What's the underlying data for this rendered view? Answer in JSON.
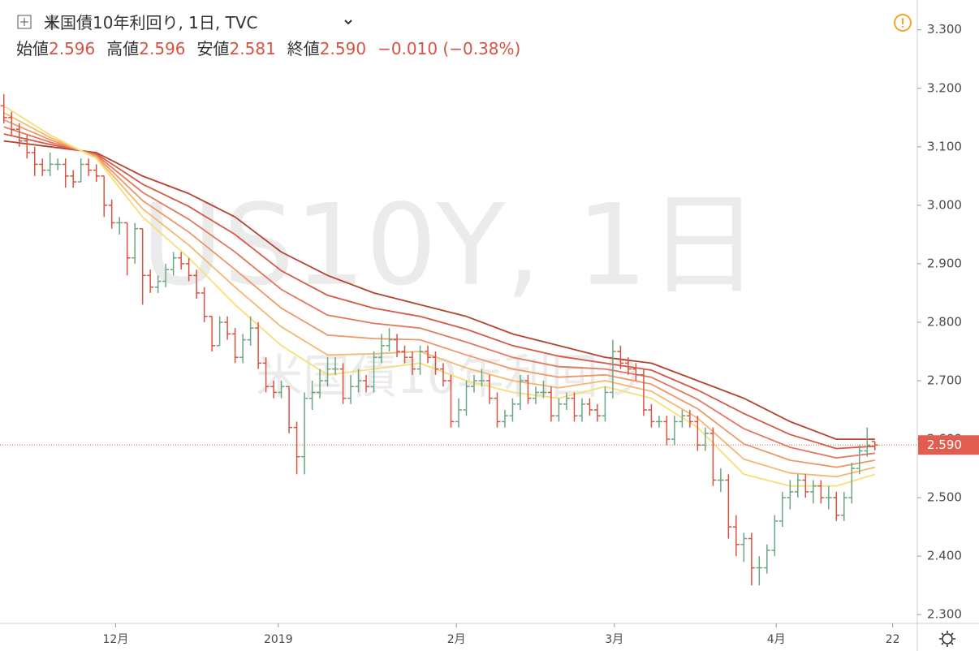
{
  "chart_data": {
    "type": "ohlc",
    "title": "米国債10年利回り, 1日, TVC",
    "legend": {
      "labels": [
        "始値",
        "高値",
        "安値",
        "終値"
      ],
      "values": [
        "2.596",
        "2.596",
        "2.581",
        "2.590"
      ],
      "change": "−0.010 (−0.38%)"
    },
    "watermark": {
      "symbol": "US10Y, 1日",
      "name": "米国債10年利回り"
    },
    "up_color": "#6ba583",
    "down_color": "#d75442",
    "open": [
      3.17,
      3.15,
      3.13,
      3.11,
      3.09,
      3.07,
      3.06,
      3.07,
      3.07,
      3.05,
      3.04,
      3.07,
      3.06,
      3.05,
      3.0,
      2.97,
      2.97,
      2.91,
      2.96,
      2.88,
      2.86,
      2.87,
      2.89,
      2.91,
      2.9,
      2.88,
      2.85,
      2.81,
      2.76,
      2.8,
      2.78,
      2.74,
      2.77,
      2.79,
      2.73,
      2.69,
      2.68,
      2.69,
      2.62,
      2.57,
      2.67,
      2.68,
      2.7,
      2.72,
      2.72,
      2.67,
      2.69,
      2.7,
      2.69,
      2.74,
      2.76,
      2.77,
      2.75,
      2.74,
      2.72,
      2.75,
      2.74,
      2.72,
      2.7,
      2.63,
      2.65,
      2.69,
      2.7,
      2.7,
      2.67,
      2.63,
      2.64,
      2.66,
      2.7,
      2.67,
      2.68,
      2.68,
      2.64,
      2.66,
      2.67,
      2.64,
      2.66,
      2.65,
      2.64,
      2.68,
      2.75,
      2.73,
      2.72,
      2.71,
      2.65,
      2.63,
      2.63,
      2.6,
      2.63,
      2.64,
      2.63,
      2.59,
      2.61,
      2.53,
      2.53,
      2.45,
      2.42,
      2.43,
      2.38,
      2.38,
      2.41,
      2.46,
      2.5,
      2.51,
      2.53,
      2.51,
      2.52,
      2.5,
      2.5,
      2.47,
      2.5,
      2.55,
      2.58,
      2.596
    ],
    "high": [
      3.19,
      3.16,
      3.14,
      3.12,
      3.1,
      3.08,
      3.09,
      3.08,
      3.08,
      3.06,
      3.08,
      3.08,
      3.07,
      3.05,
      3.01,
      2.98,
      2.97,
      2.97,
      2.96,
      2.89,
      2.88,
      2.9,
      2.92,
      2.92,
      2.91,
      2.89,
      2.86,
      2.81,
      2.81,
      2.81,
      2.79,
      2.78,
      2.81,
      2.8,
      2.74,
      2.7,
      2.7,
      2.69,
      2.63,
      2.68,
      2.7,
      2.72,
      2.74,
      2.74,
      2.73,
      2.71,
      2.72,
      2.71,
      2.75,
      2.78,
      2.79,
      2.78,
      2.76,
      2.75,
      2.76,
      2.76,
      2.75,
      2.73,
      2.71,
      2.67,
      2.7,
      2.71,
      2.72,
      2.71,
      2.68,
      2.65,
      2.67,
      2.71,
      2.71,
      2.69,
      2.7,
      2.69,
      2.67,
      2.68,
      2.68,
      2.67,
      2.67,
      2.66,
      2.69,
      2.77,
      2.76,
      2.74,
      2.73,
      2.72,
      2.66,
      2.64,
      2.64,
      2.64,
      2.65,
      2.65,
      2.64,
      2.62,
      2.62,
      2.55,
      2.54,
      2.47,
      2.44,
      2.44,
      2.4,
      2.42,
      2.47,
      2.51,
      2.53,
      2.54,
      2.54,
      2.53,
      2.53,
      2.52,
      2.51,
      2.51,
      2.56,
      2.59,
      2.62,
      2.596
    ],
    "low": [
      3.14,
      3.12,
      3.1,
      3.08,
      3.05,
      3.05,
      3.05,
      3.06,
      3.03,
      3.03,
      3.04,
      3.05,
      3.04,
      2.98,
      2.96,
      2.95,
      2.88,
      2.9,
      2.83,
      2.85,
      2.85,
      2.86,
      2.88,
      2.89,
      2.87,
      2.84,
      2.8,
      2.75,
      2.76,
      2.77,
      2.73,
      2.73,
      2.76,
      2.72,
      2.68,
      2.67,
      2.67,
      2.61,
      2.54,
      2.54,
      2.65,
      2.67,
      2.69,
      2.71,
      2.66,
      2.66,
      2.68,
      2.68,
      2.68,
      2.73,
      2.75,
      2.74,
      2.73,
      2.71,
      2.71,
      2.73,
      2.71,
      2.69,
      2.62,
      2.62,
      2.64,
      2.68,
      2.69,
      2.66,
      2.62,
      2.62,
      2.63,
      2.65,
      2.66,
      2.66,
      2.67,
      2.63,
      2.63,
      2.65,
      2.63,
      2.63,
      2.64,
      2.63,
      2.63,
      2.67,
      2.72,
      2.71,
      2.7,
      2.64,
      2.62,
      2.62,
      2.59,
      2.59,
      2.62,
      2.62,
      2.58,
      2.58,
      2.52,
      2.51,
      2.43,
      2.4,
      2.39,
      2.35,
      2.35,
      2.37,
      2.4,
      2.45,
      2.48,
      2.5,
      2.5,
      2.49,
      2.49,
      2.48,
      2.46,
      2.46,
      2.49,
      2.54,
      2.57,
      2.581
    ],
    "close": [
      3.15,
      3.13,
      3.11,
      3.09,
      3.07,
      3.06,
      3.07,
      3.07,
      3.05,
      3.04,
      3.07,
      3.06,
      3.05,
      3.0,
      2.97,
      2.97,
      2.91,
      2.96,
      2.88,
      2.86,
      2.87,
      2.89,
      2.91,
      2.9,
      2.88,
      2.85,
      2.81,
      2.76,
      2.8,
      2.78,
      2.74,
      2.77,
      2.79,
      2.73,
      2.69,
      2.68,
      2.69,
      2.62,
      2.57,
      2.67,
      2.68,
      2.7,
      2.72,
      2.72,
      2.67,
      2.69,
      2.7,
      2.69,
      2.74,
      2.76,
      2.77,
      2.75,
      2.74,
      2.72,
      2.75,
      2.74,
      2.72,
      2.7,
      2.63,
      2.65,
      2.69,
      2.7,
      2.7,
      2.67,
      2.63,
      2.64,
      2.66,
      2.7,
      2.67,
      2.68,
      2.68,
      2.64,
      2.66,
      2.67,
      2.64,
      2.66,
      2.65,
      2.64,
      2.68,
      2.75,
      2.73,
      2.72,
      2.71,
      2.65,
      2.63,
      2.63,
      2.6,
      2.63,
      2.64,
      2.63,
      2.59,
      2.61,
      2.53,
      2.53,
      2.45,
      2.42,
      2.43,
      2.38,
      2.38,
      2.41,
      2.46,
      2.5,
      2.51,
      2.53,
      2.51,
      2.52,
      2.5,
      2.5,
      2.47,
      2.5,
      2.55,
      2.58,
      2.59,
      2.59
    ],
    "ribbon_x": [
      0,
      6,
      12,
      18,
      24,
      30,
      36,
      42,
      48,
      54,
      60,
      66,
      72,
      78,
      84,
      90,
      96,
      102,
      108,
      113
    ],
    "ribbons": [
      {
        "color": "#b5432f",
        "values": [
          3.11,
          3.1,
          3.09,
          3.05,
          3.02,
          2.98,
          2.92,
          2.88,
          2.85,
          2.83,
          2.81,
          2.78,
          2.76,
          2.74,
          2.73,
          2.7,
          2.67,
          2.63,
          2.6,
          2.6
        ]
      },
      {
        "color": "#d45a45",
        "values": [
          3.122,
          3.104,
          3.088,
          3.036,
          2.998,
          2.95,
          2.888,
          2.846,
          2.824,
          2.81,
          2.788,
          2.76,
          2.742,
          2.73,
          2.718,
          2.684,
          2.644,
          2.608,
          2.584,
          2.588
        ]
      },
      {
        "color": "#e3775f",
        "values": [
          3.134,
          3.108,
          3.086,
          3.022,
          2.976,
          2.92,
          2.856,
          2.812,
          2.798,
          2.79,
          2.766,
          2.74,
          2.724,
          2.72,
          2.706,
          2.668,
          2.618,
          2.586,
          2.568,
          2.576
        ]
      },
      {
        "color": "#ee9868",
        "values": [
          3.146,
          3.112,
          3.084,
          3.008,
          2.954,
          2.89,
          2.824,
          2.778,
          2.772,
          2.77,
          2.744,
          2.72,
          2.706,
          2.71,
          2.694,
          2.652,
          2.592,
          2.564,
          2.552,
          2.564
        ]
      },
      {
        "color": "#f4b872",
        "values": [
          3.158,
          3.116,
          3.082,
          2.994,
          2.932,
          2.86,
          2.792,
          2.744,
          2.746,
          2.75,
          2.722,
          2.7,
          2.688,
          2.7,
          2.682,
          2.636,
          2.566,
          2.542,
          2.536,
          2.552
        ]
      },
      {
        "color": "#f7df74",
        "values": [
          3.17,
          3.12,
          3.08,
          2.98,
          2.91,
          2.83,
          2.76,
          2.71,
          2.72,
          2.73,
          2.7,
          2.68,
          2.67,
          2.69,
          2.67,
          2.62,
          2.54,
          2.52,
          2.52,
          2.54
        ]
      }
    ],
    "last_price": {
      "value": 2.59,
      "label": "2.590",
      "color": "#e05d4f"
    },
    "xlim": [
      -0.5,
      118.5
    ],
    "xticks": [
      {
        "value": 14.5,
        "label": "12月"
      },
      {
        "value": 35.6,
        "label": "2019"
      },
      {
        "value": 58.7,
        "label": "2月"
      },
      {
        "value": 79.2,
        "label": "3月"
      },
      {
        "value": 100.2,
        "label": "4月"
      },
      {
        "value": 115.3,
        "label": "22"
      }
    ],
    "ylim": [
      2.285,
      3.351
    ],
    "yticks": [
      {
        "value": 2.3,
        "label": "2.300"
      },
      {
        "value": 2.4,
        "label": "2.400"
      },
      {
        "value": 2.5,
        "label": "2.500"
      },
      {
        "value": 2.6,
        "label": "2.600"
      },
      {
        "value": 2.7,
        "label": "2.700"
      },
      {
        "value": 2.8,
        "label": "2.800"
      },
      {
        "value": 2.9,
        "label": "2.900"
      },
      {
        "value": 3.0,
        "label": "3.000"
      },
      {
        "value": 3.1,
        "label": "3.100"
      },
      {
        "value": 3.2,
        "label": "3.200"
      },
      {
        "value": 3.3,
        "label": "3.300"
      }
    ]
  }
}
